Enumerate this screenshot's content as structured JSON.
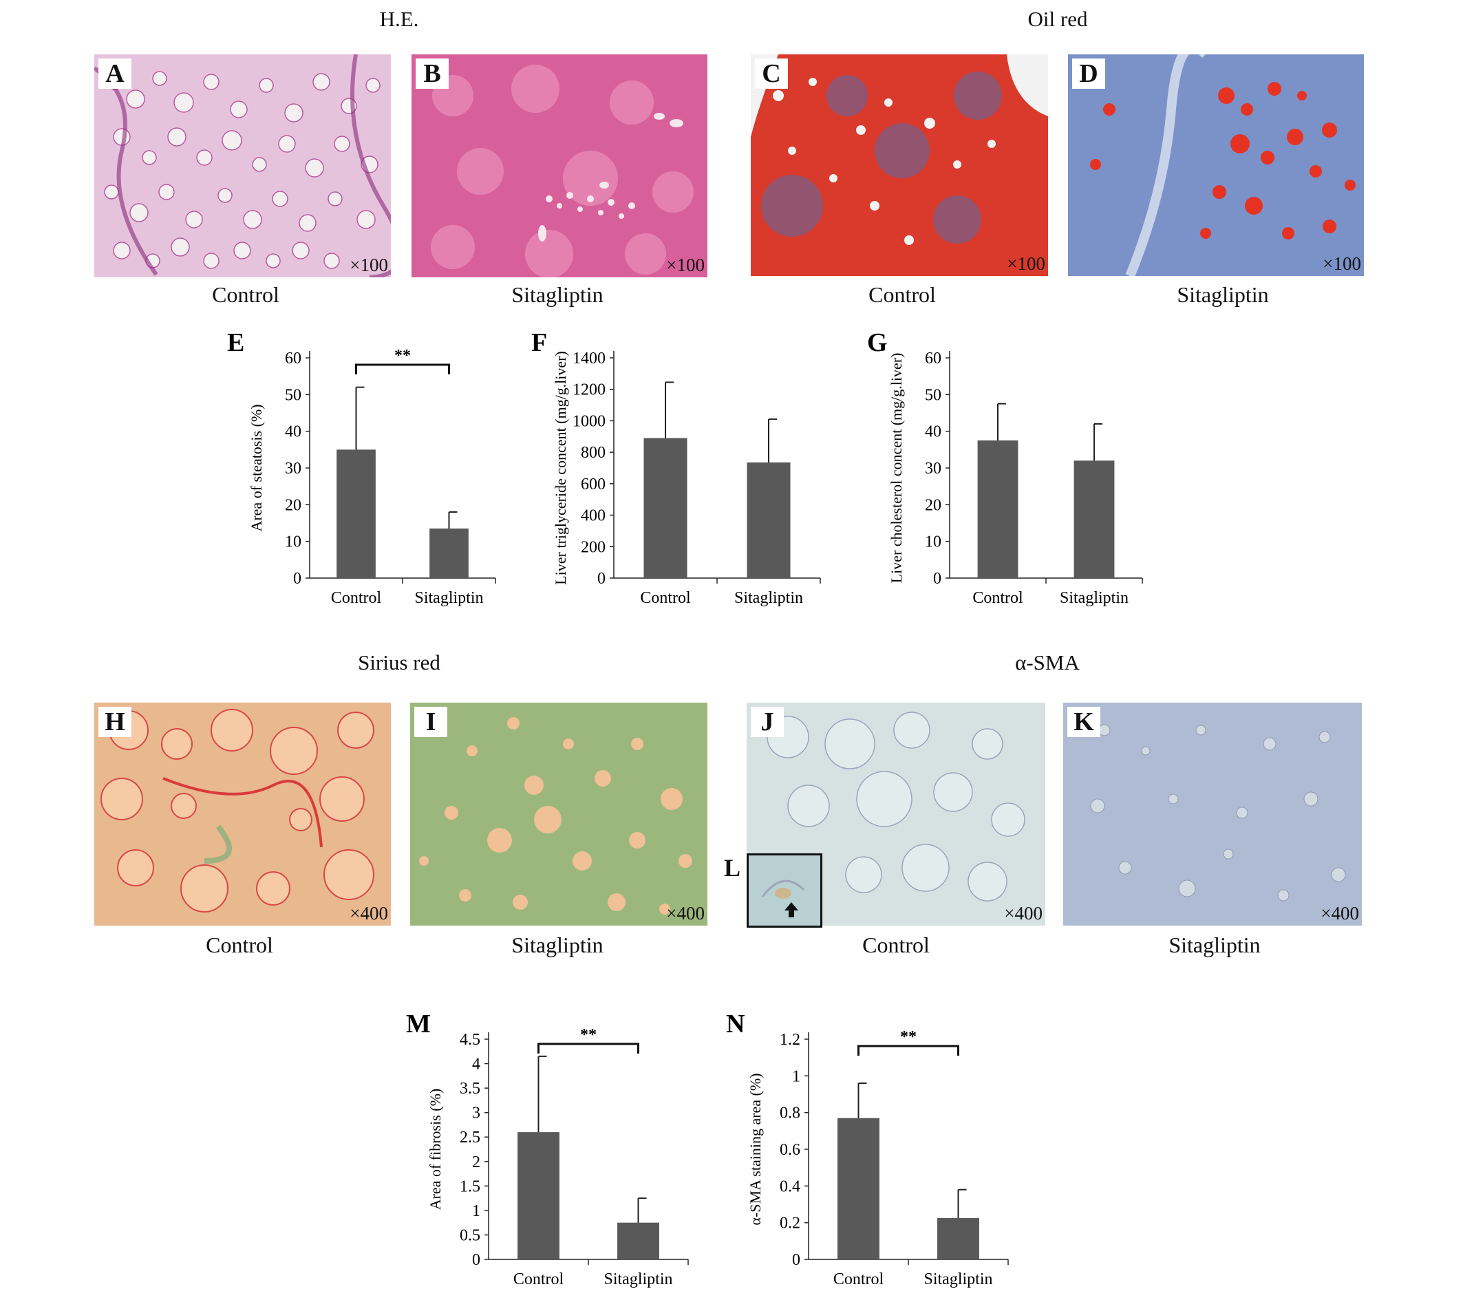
{
  "sections": {
    "he": "H.E.",
    "oil_red": "Oil red",
    "sirius_red": "Sirius red",
    "asma": "α-SMA"
  },
  "panels": {
    "A": {
      "letter": "A",
      "mag": "×100",
      "stain": "he-fatty"
    },
    "B": {
      "letter": "B",
      "mag": "×100",
      "stain": "he-normal"
    },
    "C": {
      "letter": "C",
      "mag": "×100",
      "stain": "oil-red-heavy"
    },
    "D": {
      "letter": "D",
      "mag": "×100",
      "stain": "oil-red-blue"
    },
    "H": {
      "letter": "H",
      "mag": "×400",
      "stain": "sirius-red-control"
    },
    "I": {
      "letter": "I",
      "mag": "×400",
      "stain": "sirius-red-sita"
    },
    "J": {
      "letter": "J",
      "mag": "×400",
      "stain": "asma-control"
    },
    "K": {
      "letter": "K",
      "mag": "×400",
      "stain": "asma-sita"
    },
    "L": {
      "letter": "L",
      "arrow_icon": "up-arrow-icon"
    }
  },
  "captions": {
    "a": "Control",
    "b": "Sitagliptin",
    "c": "Control",
    "d": "Sitagliptin",
    "h": "Control",
    "i": "Sitagliptin",
    "j": "Control",
    "k": "Sitagliptin"
  },
  "colors": {
    "bar": "#595959",
    "he_bg": "#e8c6dd",
    "oil_red": "#e03a2a",
    "oil_blue": "#7a92c8",
    "sirius_bg": "#f3c9a2",
    "sirius_green": "#7fae7a",
    "asma_bg": "#d8e4e4"
  },
  "chart_data": [
    {
      "id": "E",
      "letter": "E",
      "type": "bar",
      "categories": [
        "Control",
        "Sitagliptin"
      ],
      "values": [
        35,
        13.5
      ],
      "errors": [
        17,
        4.5
      ],
      "ylabel": "Area of steatosis (%)",
      "ylim": [
        0,
        60
      ],
      "ticks": [
        0,
        10,
        20,
        30,
        40,
        50,
        60
      ],
      "significance": "**"
    },
    {
      "id": "F",
      "letter": "F",
      "type": "bar",
      "categories": [
        "Control",
        "Sitagliptin"
      ],
      "values": [
        890,
        735
      ],
      "errors": [
        355,
        275
      ],
      "ylabel": "Liver triglyceride concent (mg/g.liver)",
      "ylim": [
        0,
        1400
      ],
      "ticks": [
        0,
        200,
        400,
        600,
        800,
        1000,
        1200,
        1400
      ],
      "significance": ""
    },
    {
      "id": "G",
      "letter": "G",
      "type": "bar",
      "categories": [
        "Control",
        "Sitagliptin"
      ],
      "values": [
        37.5,
        32
      ],
      "errors": [
        10,
        10
      ],
      "ylabel": "Liver cholesterol concent (mg/g.liver)",
      "ylim": [
        0,
        60
      ],
      "ticks": [
        0,
        10,
        20,
        30,
        40,
        50,
        60
      ],
      "significance": ""
    },
    {
      "id": "M",
      "letter": "M",
      "type": "bar",
      "categories": [
        "Control",
        "Sitagliptin"
      ],
      "values": [
        2.6,
        0.75
      ],
      "errors": [
        1.55,
        0.5
      ],
      "ylabel": "Area of fibrosis (%)",
      "ylim": [
        0,
        4.5
      ],
      "ticks": [
        0,
        0.5,
        1,
        1.5,
        2,
        2.5,
        3,
        3.5,
        4,
        4.5
      ],
      "significance": "**"
    },
    {
      "id": "N",
      "letter": "N",
      "type": "bar",
      "categories": [
        "Control",
        "Sitagliptin"
      ],
      "values": [
        0.77,
        0.225
      ],
      "errors": [
        0.19,
        0.155
      ],
      "ylabel": "α-SMA staining area (%)",
      "ylim": [
        0,
        1.2
      ],
      "ticks": [
        0,
        0.2,
        0.4,
        0.6,
        0.8,
        1,
        1.2
      ],
      "significance": "**"
    }
  ]
}
